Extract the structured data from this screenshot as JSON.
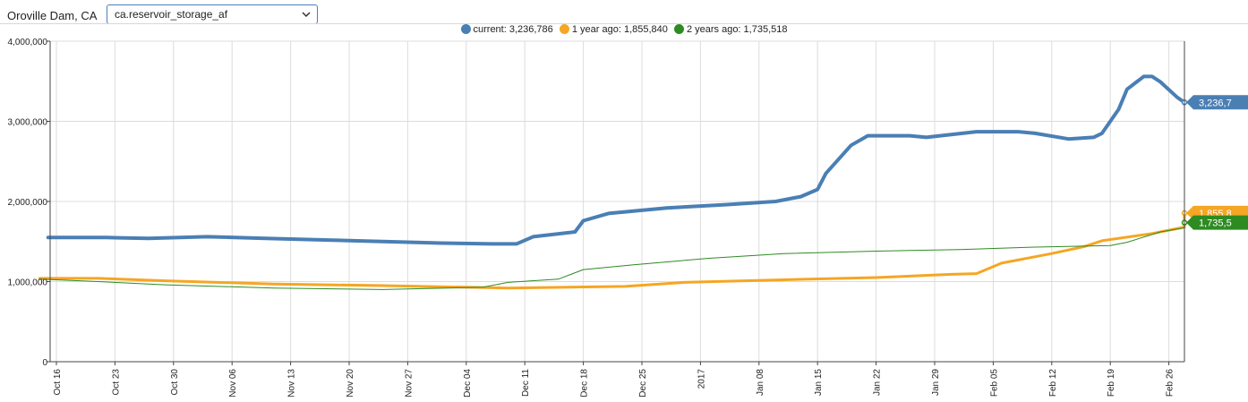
{
  "toolbar": {
    "entity": "Oroville Dam, CA",
    "metric": "ca.reservoir_storage_af"
  },
  "legend": [
    {
      "label": "current: 3,236,786",
      "color": "#4a7fb4"
    },
    {
      "label": "1 year ago: 1,855,840",
      "color": "#f5a623"
    },
    {
      "label": "2 years ago: 1,735,518",
      "color": "#2e8b22"
    }
  ],
  "chart_data": {
    "type": "line",
    "x_tick_labels": [
      "Oct 16",
      "Oct 23",
      "Oct 30",
      "Nov 06",
      "Nov 13",
      "Nov 20",
      "Nov 27",
      "Dec 04",
      "Dec 11",
      "Dec 18",
      "Dec 25",
      "2017",
      "Jan 08",
      "Jan 15",
      "Jan 22",
      "Jan 29",
      "Feb 05",
      "Feb 12",
      "Feb 19",
      "Feb 26"
    ],
    "y_tick_labels": [
      "4,000,000",
      "3,000,000",
      "2,000,000",
      "1,000,000",
      "0"
    ],
    "ylim": [
      0,
      4000000
    ],
    "grid": true,
    "legend_position": "top",
    "series": [
      {
        "name": "current",
        "color": "#4a7fb4",
        "last_value_tag": "3,236,7",
        "points": [
          [
            "2016-10-15",
            1550000
          ],
          [
            "2016-10-22",
            1550000
          ],
          [
            "2016-10-27",
            1540000
          ],
          [
            "2016-11-03",
            1560000
          ],
          [
            "2016-11-10",
            1540000
          ],
          [
            "2016-11-17",
            1520000
          ],
          [
            "2016-11-24",
            1500000
          ],
          [
            "2016-12-01",
            1480000
          ],
          [
            "2016-12-07",
            1470000
          ],
          [
            "2016-12-10",
            1470000
          ],
          [
            "2016-12-12",
            1560000
          ],
          [
            "2016-12-17",
            1620000
          ],
          [
            "2016-12-18",
            1760000
          ],
          [
            "2016-12-21",
            1850000
          ],
          [
            "2016-12-28",
            1920000
          ],
          [
            "2017-01-04",
            1960000
          ],
          [
            "2017-01-10",
            2000000
          ],
          [
            "2017-01-13",
            2060000
          ],
          [
            "2017-01-15",
            2150000
          ],
          [
            "2017-01-16",
            2350000
          ],
          [
            "2017-01-19",
            2700000
          ],
          [
            "2017-01-21",
            2820000
          ],
          [
            "2017-01-26",
            2820000
          ],
          [
            "2017-01-28",
            2800000
          ],
          [
            "2017-02-03",
            2870000
          ],
          [
            "2017-02-08",
            2870000
          ],
          [
            "2017-02-10",
            2850000
          ],
          [
            "2017-02-14",
            2780000
          ],
          [
            "2017-02-17",
            2800000
          ],
          [
            "2017-02-18",
            2850000
          ],
          [
            "2017-02-20",
            3150000
          ],
          [
            "2017-02-21",
            3400000
          ],
          [
            "2017-02-23",
            3560000
          ],
          [
            "2017-02-24",
            3560000
          ],
          [
            "2017-02-25",
            3490000
          ],
          [
            "2017-02-27",
            3300000
          ],
          [
            "2017-02-28",
            3236786
          ]
        ]
      },
      {
        "name": "1 year ago",
        "color": "#f5a623",
        "last_value_tag": "1,855,8",
        "points": [
          [
            "2016-10-14",
            1040000
          ],
          [
            "2016-10-21",
            1040000
          ],
          [
            "2016-10-29",
            1010000
          ],
          [
            "2016-11-11",
            970000
          ],
          [
            "2016-11-24",
            950000
          ],
          [
            "2016-12-09",
            920000
          ],
          [
            "2016-12-23",
            940000
          ],
          [
            "2016-12-30",
            990000
          ],
          [
            "2017-01-14",
            1030000
          ],
          [
            "2017-01-22",
            1050000
          ],
          [
            "2017-01-31",
            1090000
          ],
          [
            "2017-02-03",
            1100000
          ],
          [
            "2017-02-06",
            1230000
          ],
          [
            "2017-02-12",
            1350000
          ],
          [
            "2017-02-16",
            1440000
          ],
          [
            "2017-02-18",
            1510000
          ],
          [
            "2017-02-24",
            1600000
          ],
          [
            "2017-03-04",
            1680000
          ],
          [
            "2017-03-12",
            1740000
          ],
          [
            "2017-03-20",
            1820000
          ],
          [
            "2017-03-29",
            1855840
          ]
        ]
      },
      {
        "name": "2 years ago",
        "color": "#2e8b22",
        "last_value_tag": "1,735,5",
        "points": [
          [
            "2016-10-14",
            1030000
          ],
          [
            "2016-10-21",
            1000000
          ],
          [
            "2016-10-29",
            960000
          ],
          [
            "2016-11-11",
            920000
          ],
          [
            "2016-11-24",
            900000
          ],
          [
            "2016-12-06",
            930000
          ],
          [
            "2016-12-09",
            990000
          ],
          [
            "2016-12-15",
            1030000
          ],
          [
            "2016-12-18",
            1150000
          ],
          [
            "2016-12-24",
            1210000
          ],
          [
            "2017-01-02",
            1290000
          ],
          [
            "2017-01-11",
            1350000
          ],
          [
            "2017-01-22",
            1380000
          ],
          [
            "2017-02-01",
            1400000
          ],
          [
            "2017-02-10",
            1430000
          ],
          [
            "2017-02-19",
            1450000
          ],
          [
            "2017-02-21",
            1490000
          ],
          [
            "2017-02-25",
            1620000
          ],
          [
            "2017-03-05",
            1670000
          ],
          [
            "2017-03-13",
            1700000
          ],
          [
            "2017-03-21",
            1720000
          ],
          [
            "2017-03-29",
            1735518
          ]
        ]
      }
    ]
  }
}
